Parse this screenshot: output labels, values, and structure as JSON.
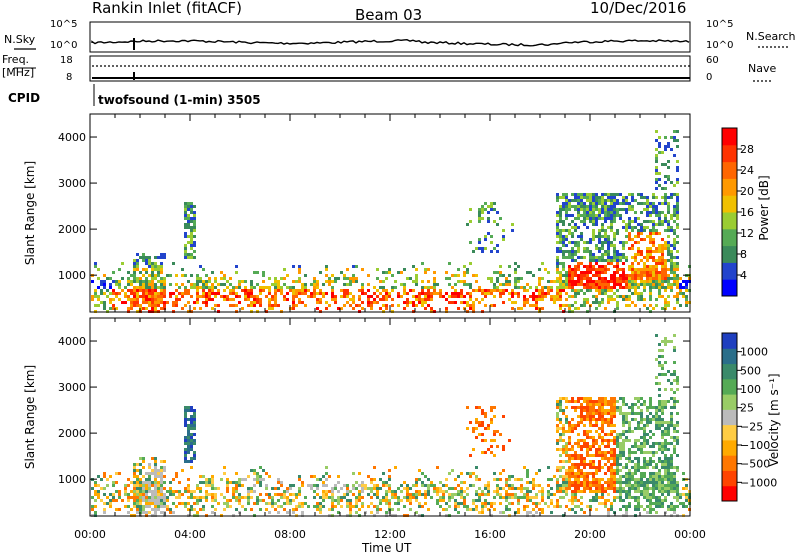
{
  "header": {
    "station": "Rankin Inlet (fitACF)",
    "beam": "Beam 03",
    "date": "10/Dec/2016"
  },
  "top_panels": {
    "nsky": {
      "label": "N.Sky",
      "right_label": "N.Search",
      "ticks_left": [
        "10^5",
        "10^0"
      ],
      "ticks_right": [
        "10^5",
        "10^0"
      ]
    },
    "freq": {
      "label_line1": "Freq.",
      "label_line2": "[MHz]",
      "right_label": "Nave",
      "ticks_left": [
        "18",
        "8"
      ],
      "ticks_right": [
        "60",
        "0"
      ]
    },
    "cpid": {
      "label": "CPID",
      "text": "twofsound (1-min) 3505"
    }
  },
  "colors": {
    "power_scale": [
      "#0000ff",
      "#2244cc",
      "#3a8a5a",
      "#55aa55",
      "#9acd32",
      "#f0c000",
      "#ff9900",
      "#ff6600",
      "#ff3300",
      "#ff0000"
    ],
    "velocity_scale": [
      "#ff0000",
      "#ff4400",
      "#ff7700",
      "#ffaa00",
      "#ffcc44",
      "#bbbbbb",
      "#99cc66",
      "#55aa55",
      "#3a8a6a",
      "#2a6e8a",
      "#1f3fbf"
    ]
  },
  "chart_data": [
    {
      "type": "heatmap",
      "name": "power",
      "ylabel": "Slant Range [km]",
      "yticks": [
        "1000",
        "2000",
        "3000",
        "4000"
      ],
      "ylim": [
        200,
        4500
      ],
      "xlim": [
        0,
        24
      ],
      "colorbar": {
        "label": "Power [dB]",
        "ticks": [
          "4",
          "8",
          "12",
          "16",
          "20",
          "24",
          "28"
        ]
      }
    },
    {
      "type": "heatmap",
      "name": "velocity",
      "ylabel": "Slant Range [km]",
      "yticks": [
        "1000",
        "2000",
        "3000",
        "4000"
      ],
      "ylim": [
        200,
        4500
      ],
      "xlim": [
        0,
        24
      ],
      "xticks": [
        "00:00",
        "04:00",
        "08:00",
        "12:00",
        "16:00",
        "20:00",
        "00:00"
      ],
      "xlabel": "Time UT",
      "colorbar": {
        "label": "Velocity [m s⁻¹]",
        "ticks": [
          "1000",
          "500",
          "100",
          "25",
          "−25",
          "−100",
          "−500",
          "−1000"
        ]
      }
    }
  ]
}
